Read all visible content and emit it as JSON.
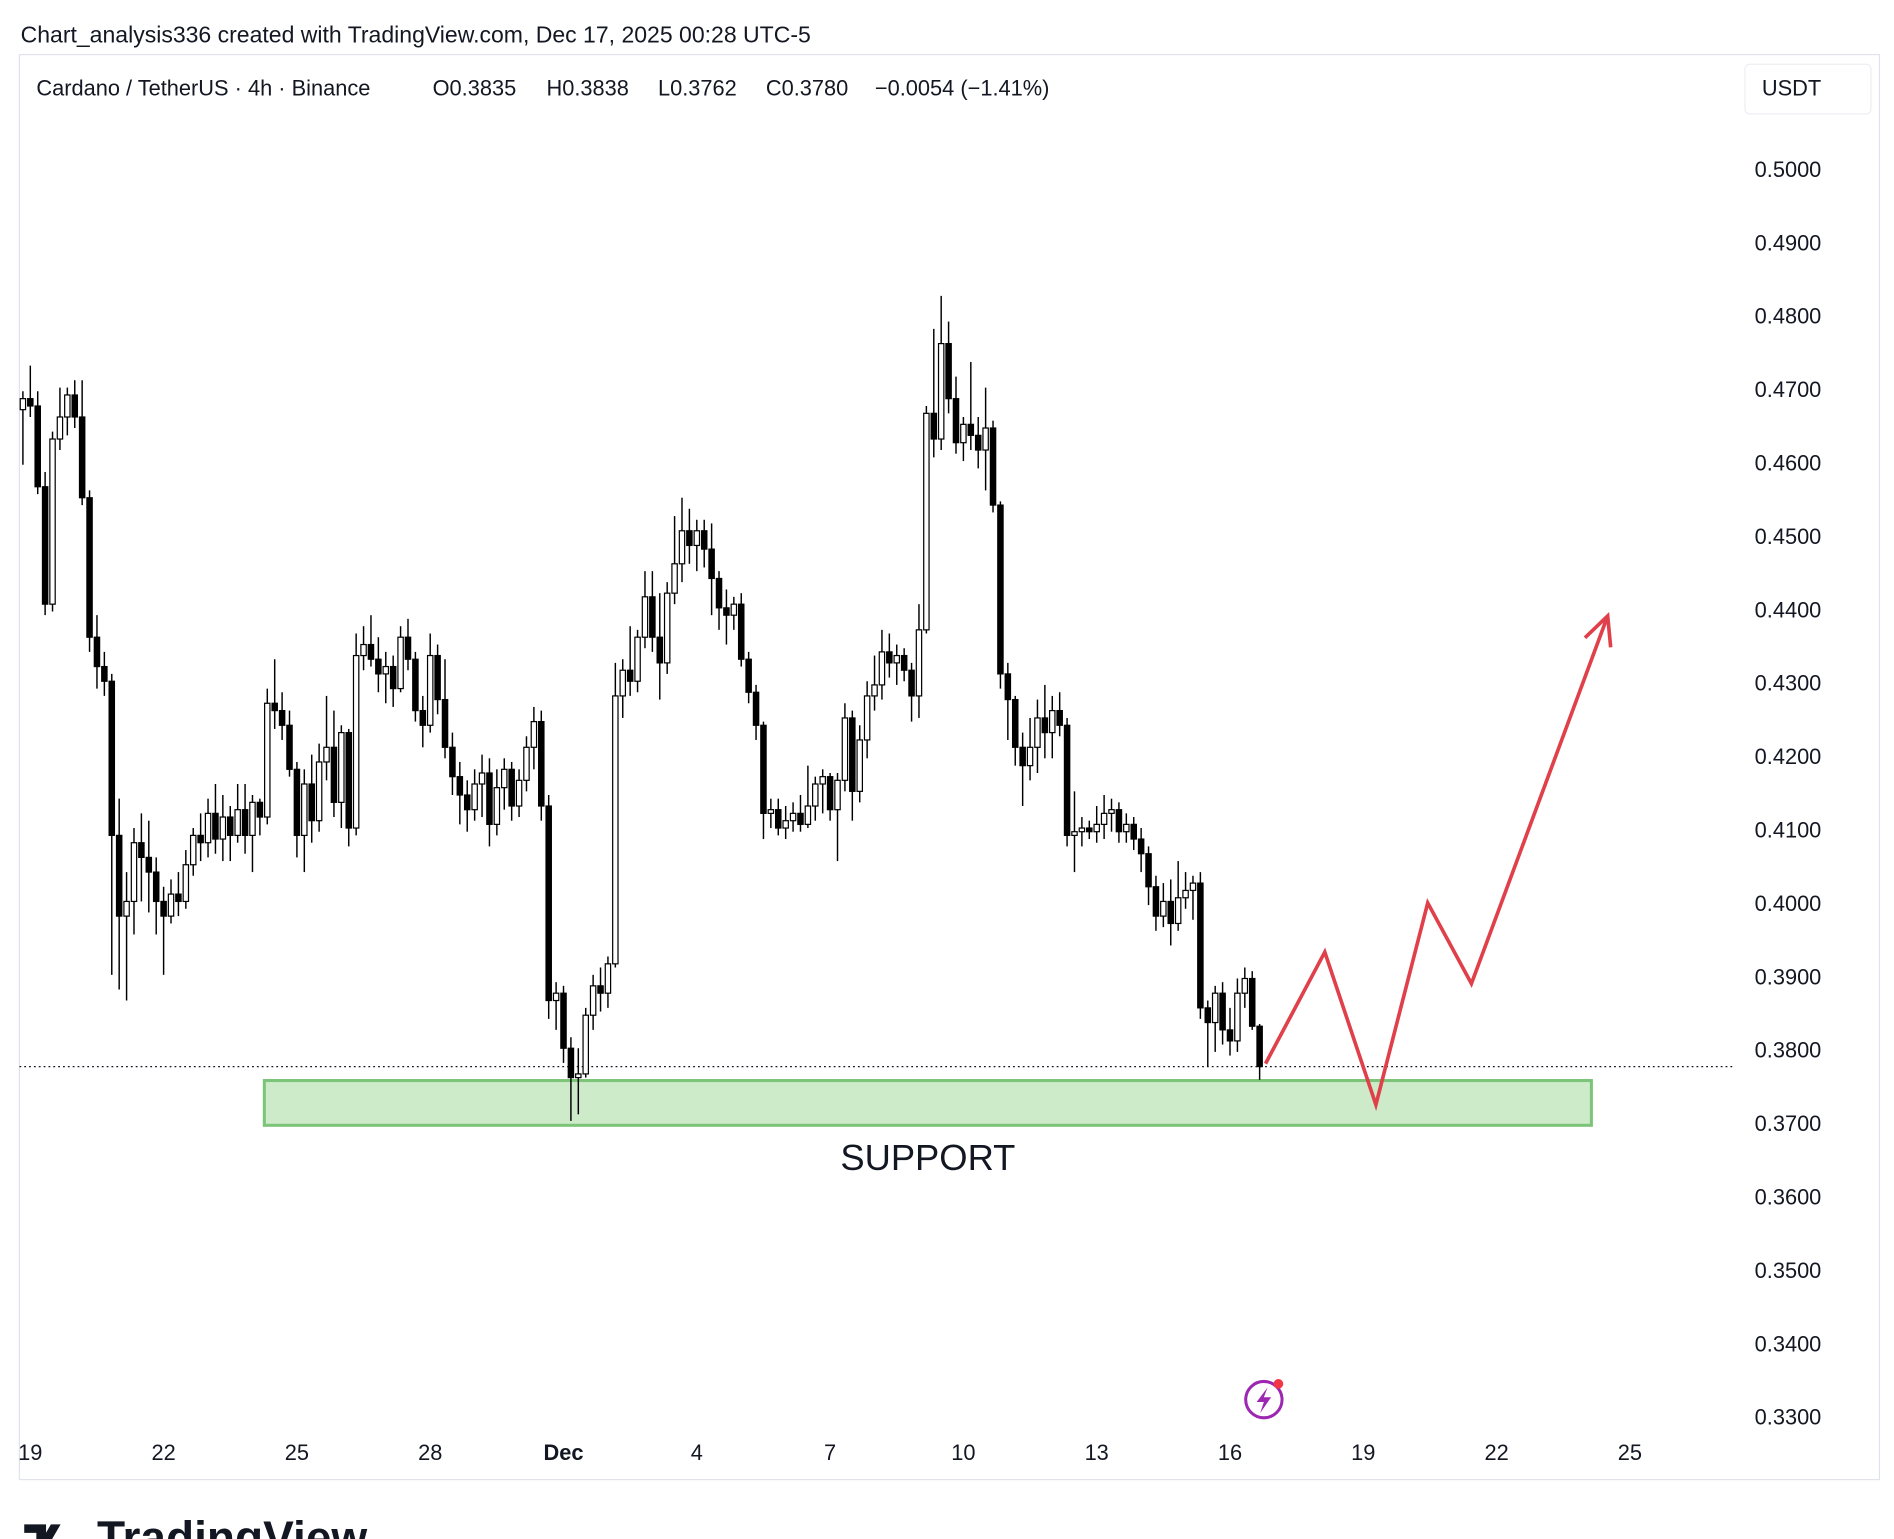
{
  "header": "Chart_analysis336 created with TradingView.com, Dec 17, 2025 00:28 UTC-5",
  "chart_data": {
    "type": "candlestick",
    "title": "Cardano / TetherUS · 4h · Binance",
    "ohlc_labels": [
      "O0.3835",
      "H0.3838",
      "L0.3762",
      "C0.3780",
      "−0.0054 (−1.41%)"
    ],
    "currency": "USDT",
    "up_color": "#ffffff",
    "down_color": "#000000",
    "wick_color": "#000000",
    "xlim": [
      -0.475,
      230.9
    ],
    "ylim": [
      0.3285,
      0.5068
    ],
    "xticks": [
      {
        "value": 1,
        "label": "19"
      },
      {
        "value": 19,
        "label": "22"
      },
      {
        "value": 37,
        "label": "25"
      },
      {
        "value": 55,
        "label": "28"
      },
      {
        "value": 73,
        "label": "Dec"
      },
      {
        "value": 91,
        "label": "4"
      },
      {
        "value": 109,
        "label": "7"
      },
      {
        "value": 127,
        "label": "10"
      },
      {
        "value": 145,
        "label": "13"
      },
      {
        "value": 163,
        "label": "16"
      },
      {
        "value": 181,
        "label": "19"
      },
      {
        "value": 199,
        "label": "22"
      },
      {
        "value": 217,
        "label": "25"
      }
    ],
    "yticks": [
      {
        "value": 0.33,
        "label": "0.3300"
      },
      {
        "value": 0.34,
        "label": "0.3400"
      },
      {
        "value": 0.35,
        "label": "0.3500"
      },
      {
        "value": 0.36,
        "label": "0.3600"
      },
      {
        "value": 0.37,
        "label": "0.3700"
      },
      {
        "value": 0.38,
        "label": "0.3800"
      },
      {
        "value": 0.39,
        "label": "0.3900"
      },
      {
        "value": 0.4,
        "label": "0.4000"
      },
      {
        "value": 0.41,
        "label": "0.4100"
      },
      {
        "value": 0.42,
        "label": "0.4200"
      },
      {
        "value": 0.43,
        "label": "0.4300"
      },
      {
        "value": 0.44,
        "label": "0.4400"
      },
      {
        "value": 0.45,
        "label": "0.4500"
      },
      {
        "value": 0.46,
        "label": "0.4600"
      },
      {
        "value": 0.47,
        "label": "0.4700"
      },
      {
        "value": 0.48,
        "label": "0.4800"
      },
      {
        "value": 0.49,
        "label": "0.4900"
      },
      {
        "value": 0.5,
        "label": "0.5000"
      }
    ],
    "candles": [
      [
        0.4675,
        0.47,
        0.46,
        0.469
      ],
      [
        0.469,
        0.4735,
        0.4665,
        0.468
      ],
      [
        0.468,
        0.47,
        0.456,
        0.457
      ],
      [
        0.457,
        0.459,
        0.4395,
        0.441
      ],
      [
        0.441,
        0.4645,
        0.44,
        0.4635
      ],
      [
        0.4635,
        0.4705,
        0.462,
        0.4665
      ],
      [
        0.4665,
        0.4705,
        0.464,
        0.4695
      ],
      [
        0.4695,
        0.4715,
        0.465,
        0.4665
      ],
      [
        0.4665,
        0.4715,
        0.4545,
        0.4555
      ],
      [
        0.4555,
        0.4565,
        0.4345,
        0.4365
      ],
      [
        0.4365,
        0.4395,
        0.4295,
        0.4325
      ],
      [
        0.4325,
        0.4345,
        0.4285,
        0.4305
      ],
      [
        0.4305,
        0.4315,
        0.3905,
        0.4095
      ],
      [
        0.4095,
        0.4145,
        0.3885,
        0.3985
      ],
      [
        0.3985,
        0.4045,
        0.387,
        0.4005
      ],
      [
        0.4005,
        0.4105,
        0.396,
        0.4085
      ],
      [
        0.4085,
        0.4125,
        0.4005,
        0.4065
      ],
      [
        0.4065,
        0.4115,
        0.399,
        0.4045
      ],
      [
        0.4045,
        0.4065,
        0.396,
        0.4005
      ],
      [
        0.4005,
        0.4025,
        0.3905,
        0.3985
      ],
      [
        0.3985,
        0.4035,
        0.3975,
        0.4015
      ],
      [
        0.4015,
        0.4045,
        0.3985,
        0.4005
      ],
      [
        0.4005,
        0.4075,
        0.3995,
        0.4055
      ],
      [
        0.4055,
        0.4105,
        0.404,
        0.4095
      ],
      [
        0.4095,
        0.4125,
        0.406,
        0.4085
      ],
      [
        0.4085,
        0.4145,
        0.4065,
        0.4125
      ],
      [
        0.4125,
        0.4165,
        0.407,
        0.409
      ],
      [
        0.409,
        0.415,
        0.406,
        0.412
      ],
      [
        0.412,
        0.4135,
        0.406,
        0.4095
      ],
      [
        0.4095,
        0.4165,
        0.4085,
        0.413
      ],
      [
        0.413,
        0.4165,
        0.407,
        0.4095
      ],
      [
        0.4095,
        0.415,
        0.4045,
        0.414
      ],
      [
        0.414,
        0.4145,
        0.4095,
        0.412
      ],
      [
        0.412,
        0.4295,
        0.411,
        0.4275
      ],
      [
        0.4275,
        0.4335,
        0.424,
        0.4265
      ],
      [
        0.4265,
        0.429,
        0.4225,
        0.4245
      ],
      [
        0.4245,
        0.4265,
        0.4175,
        0.4185
      ],
      [
        0.4185,
        0.4195,
        0.4065,
        0.4095
      ],
      [
        0.4095,
        0.4185,
        0.4045,
        0.4165
      ],
      [
        0.4165,
        0.4205,
        0.4085,
        0.4115
      ],
      [
        0.4115,
        0.422,
        0.41,
        0.4195
      ],
      [
        0.4195,
        0.4285,
        0.417,
        0.4215
      ],
      [
        0.4215,
        0.4265,
        0.412,
        0.414
      ],
      [
        0.414,
        0.4245,
        0.4105,
        0.4235
      ],
      [
        0.4235,
        0.424,
        0.408,
        0.4105
      ],
      [
        0.4105,
        0.437,
        0.4095,
        0.434
      ],
      [
        0.434,
        0.438,
        0.432,
        0.4355
      ],
      [
        0.4355,
        0.4395,
        0.4325,
        0.4335
      ],
      [
        0.4335,
        0.4365,
        0.429,
        0.4315
      ],
      [
        0.4315,
        0.4345,
        0.4275,
        0.4325
      ],
      [
        0.4325,
        0.434,
        0.427,
        0.4295
      ],
      [
        0.4295,
        0.438,
        0.429,
        0.4365
      ],
      [
        0.4365,
        0.439,
        0.432,
        0.4335
      ],
      [
        0.4335,
        0.4345,
        0.425,
        0.4265
      ],
      [
        0.4265,
        0.4285,
        0.4215,
        0.4245
      ],
      [
        0.4245,
        0.437,
        0.4235,
        0.434
      ],
      [
        0.434,
        0.4355,
        0.426,
        0.428
      ],
      [
        0.428,
        0.4335,
        0.42,
        0.4215
      ],
      [
        0.4215,
        0.4235,
        0.415,
        0.4175
      ],
      [
        0.4175,
        0.4195,
        0.411,
        0.415
      ],
      [
        0.415,
        0.417,
        0.41,
        0.413
      ],
      [
        0.413,
        0.4185,
        0.4115,
        0.4165
      ],
      [
        0.4165,
        0.4205,
        0.412,
        0.418
      ],
      [
        0.418,
        0.42,
        0.408,
        0.411
      ],
      [
        0.411,
        0.4185,
        0.4095,
        0.416
      ],
      [
        0.416,
        0.42,
        0.413,
        0.4185
      ],
      [
        0.4185,
        0.4195,
        0.4115,
        0.4135
      ],
      [
        0.4135,
        0.4185,
        0.412,
        0.417
      ],
      [
        0.417,
        0.423,
        0.4155,
        0.4215
      ],
      [
        0.4215,
        0.427,
        0.4185,
        0.425
      ],
      [
        0.425,
        0.4265,
        0.4115,
        0.4135
      ],
      [
        0.4135,
        0.415,
        0.3845,
        0.387
      ],
      [
        0.387,
        0.3895,
        0.383,
        0.388
      ],
      [
        0.388,
        0.389,
        0.3785,
        0.3805
      ],
      [
        0.3805,
        0.382,
        0.3706,
        0.3765
      ],
      [
        0.3765,
        0.3805,
        0.3715,
        0.377
      ],
      [
        0.377,
        0.386,
        0.3765,
        0.385
      ],
      [
        0.385,
        0.3905,
        0.383,
        0.389
      ],
      [
        0.389,
        0.3915,
        0.3855,
        0.388
      ],
      [
        0.388,
        0.393,
        0.386,
        0.392
      ],
      [
        0.392,
        0.433,
        0.3915,
        0.4285
      ],
      [
        0.4285,
        0.4335,
        0.4255,
        0.432
      ],
      [
        0.432,
        0.438,
        0.4285,
        0.4305
      ],
      [
        0.4305,
        0.4375,
        0.429,
        0.4365
      ],
      [
        0.4365,
        0.4455,
        0.435,
        0.442
      ],
      [
        0.442,
        0.4455,
        0.4345,
        0.4365
      ],
      [
        0.4365,
        0.4425,
        0.428,
        0.433
      ],
      [
        0.433,
        0.444,
        0.4315,
        0.4425
      ],
      [
        0.4425,
        0.453,
        0.441,
        0.4465
      ],
      [
        0.4465,
        0.4555,
        0.444,
        0.451
      ],
      [
        0.451,
        0.454,
        0.4465,
        0.449
      ],
      [
        0.449,
        0.4525,
        0.4455,
        0.451
      ],
      [
        0.451,
        0.4525,
        0.446,
        0.4485
      ],
      [
        0.4485,
        0.452,
        0.4395,
        0.4445
      ],
      [
        0.4445,
        0.4455,
        0.4375,
        0.4405
      ],
      [
        0.4405,
        0.443,
        0.4355,
        0.4395
      ],
      [
        0.4395,
        0.442,
        0.4375,
        0.441
      ],
      [
        0.441,
        0.4425,
        0.4325,
        0.4335
      ],
      [
        0.4335,
        0.4345,
        0.4275,
        0.429
      ],
      [
        0.429,
        0.43,
        0.4225,
        0.4245
      ],
      [
        0.4245,
        0.425,
        0.409,
        0.4125
      ],
      [
        0.4125,
        0.4145,
        0.4105,
        0.413
      ],
      [
        0.413,
        0.4145,
        0.4095,
        0.4105
      ],
      [
        0.4105,
        0.4135,
        0.409,
        0.4115
      ],
      [
        0.4115,
        0.414,
        0.41,
        0.4125
      ],
      [
        0.4125,
        0.415,
        0.41,
        0.411
      ],
      [
        0.411,
        0.419,
        0.4105,
        0.4135
      ],
      [
        0.4135,
        0.4175,
        0.4115,
        0.4165
      ],
      [
        0.4165,
        0.4185,
        0.4125,
        0.4175
      ],
      [
        0.4175,
        0.418,
        0.4115,
        0.413
      ],
      [
        0.413,
        0.418,
        0.406,
        0.417
      ],
      [
        0.417,
        0.4275,
        0.4155,
        0.4255
      ],
      [
        0.4255,
        0.4265,
        0.4115,
        0.4155
      ],
      [
        0.4155,
        0.4245,
        0.414,
        0.4225
      ],
      [
        0.4225,
        0.4305,
        0.42,
        0.4285
      ],
      [
        0.4285,
        0.434,
        0.4265,
        0.43
      ],
      [
        0.43,
        0.4375,
        0.428,
        0.4345
      ],
      [
        0.4345,
        0.437,
        0.431,
        0.433
      ],
      [
        0.433,
        0.4355,
        0.43,
        0.434
      ],
      [
        0.434,
        0.435,
        0.4305,
        0.432
      ],
      [
        0.432,
        0.433,
        0.425,
        0.4285
      ],
      [
        0.4285,
        0.441,
        0.4255,
        0.4375
      ],
      [
        0.4375,
        0.468,
        0.437,
        0.467
      ],
      [
        0.467,
        0.4785,
        0.461,
        0.4635
      ],
      [
        0.4635,
        0.483,
        0.462,
        0.4765
      ],
      [
        0.4765,
        0.4795,
        0.467,
        0.469
      ],
      [
        0.469,
        0.472,
        0.4615,
        0.463
      ],
      [
        0.463,
        0.4665,
        0.4605,
        0.4655
      ],
      [
        0.4655,
        0.474,
        0.462,
        0.464
      ],
      [
        0.464,
        0.4665,
        0.4595,
        0.462
      ],
      [
        0.462,
        0.4705,
        0.4565,
        0.465
      ],
      [
        0.465,
        0.466,
        0.4535,
        0.4545
      ],
      [
        0.4545,
        0.455,
        0.4295,
        0.4315
      ],
      [
        0.4315,
        0.433,
        0.4225,
        0.428
      ],
      [
        0.428,
        0.4285,
        0.419,
        0.4215
      ],
      [
        0.4215,
        0.4235,
        0.4135,
        0.419
      ],
      [
        0.419,
        0.4255,
        0.417,
        0.4215
      ],
      [
        0.4215,
        0.428,
        0.418,
        0.4255
      ],
      [
        0.4255,
        0.43,
        0.42,
        0.4235
      ],
      [
        0.4235,
        0.4285,
        0.42,
        0.4265
      ],
      [
        0.4265,
        0.429,
        0.423,
        0.4245
      ],
      [
        0.4245,
        0.4255,
        0.408,
        0.4095
      ],
      [
        0.4095,
        0.4155,
        0.4045,
        0.41
      ],
      [
        0.41,
        0.412,
        0.408,
        0.4105
      ],
      [
        0.4105,
        0.4115,
        0.409,
        0.41
      ],
      [
        0.41,
        0.4135,
        0.4085,
        0.411
      ],
      [
        0.411,
        0.415,
        0.409,
        0.4125
      ],
      [
        0.4125,
        0.4145,
        0.41,
        0.413
      ],
      [
        0.413,
        0.414,
        0.4085,
        0.41
      ],
      [
        0.41,
        0.4125,
        0.4085,
        0.411
      ],
      [
        0.411,
        0.412,
        0.4075,
        0.409
      ],
      [
        0.409,
        0.4105,
        0.4045,
        0.407
      ],
      [
        0.407,
        0.408,
        0.4,
        0.4025
      ],
      [
        0.4025,
        0.404,
        0.3965,
        0.3985
      ],
      [
        0.3985,
        0.403,
        0.397,
        0.4005
      ],
      [
        0.4005,
        0.4035,
        0.3945,
        0.3975
      ],
      [
        0.3975,
        0.406,
        0.3965,
        0.401
      ],
      [
        0.401,
        0.4045,
        0.3995,
        0.402
      ],
      [
        0.402,
        0.404,
        0.398,
        0.403
      ],
      [
        0.403,
        0.4045,
        0.3845,
        0.386
      ],
      [
        0.386,
        0.387,
        0.378,
        0.384
      ],
      [
        0.384,
        0.389,
        0.38,
        0.388
      ],
      [
        0.388,
        0.3895,
        0.381,
        0.383
      ],
      [
        0.383,
        0.386,
        0.3795,
        0.3815
      ],
      [
        0.3815,
        0.39,
        0.38,
        0.388
      ],
      [
        0.388,
        0.3915,
        0.386,
        0.39
      ],
      [
        0.39,
        0.391,
        0.383,
        0.3835
      ],
      [
        0.3835,
        0.3838,
        0.3762,
        0.378
      ]
    ],
    "support_zone": {
      "label": "SUPPORT",
      "x": [
        32.6,
        211.8
      ],
      "y": [
        0.37,
        0.3761
      ],
      "color": "#cdebc9",
      "border": "#7cc477"
    },
    "projection": {
      "x": [
        167.8,
        175.8,
        182.7,
        189.7,
        195.6,
        214.0
      ],
      "y": [
        0.3784,
        0.3936,
        0.3728,
        0.4003,
        0.3893,
        0.4394
      ],
      "color": "#e0404a"
    }
  },
  "footer_logo": "TradingView"
}
